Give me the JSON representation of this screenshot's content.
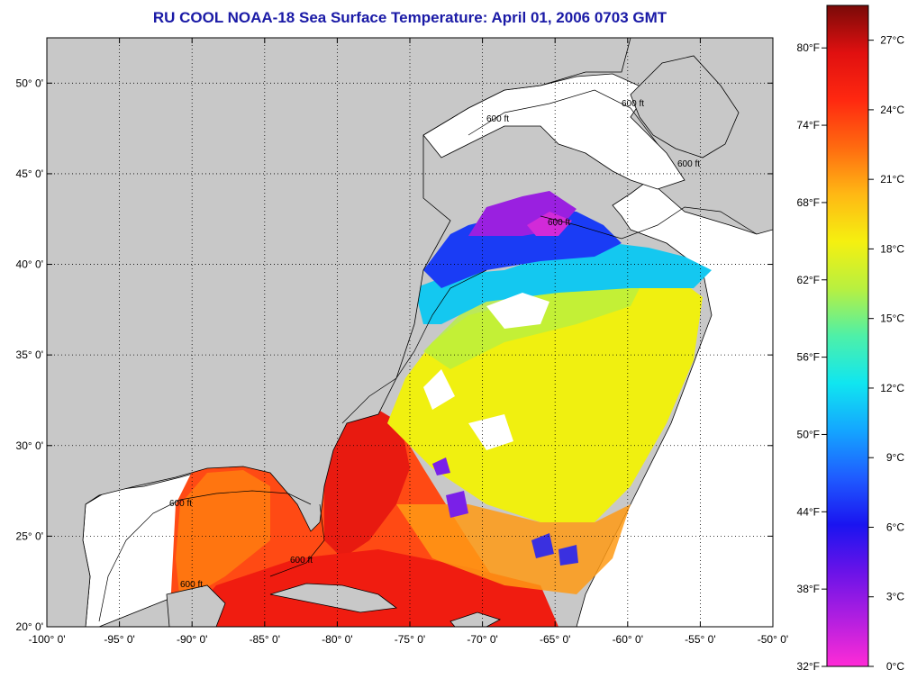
{
  "title": "RU COOL  NOAA-18  Sea Surface Temperature:  April 01, 2006 0703 GMT",
  "map": {
    "lon_range": [
      -100,
      -50
    ],
    "lat_range": [
      20,
      52.5
    ],
    "lon_ticks": [
      "-100° 0'",
      "-95° 0'",
      "-90° 0'",
      "-85° 0'",
      "-80° 0'",
      "-75° 0'",
      "-70° 0'",
      "-65° 0'",
      "-60° 0'",
      "-55° 0'",
      "-50° 0'"
    ],
    "lat_ticks": [
      "20° 0'",
      "25° 0'",
      "30° 0'",
      "35° 0'",
      "40° 0'",
      "45° 0'",
      "50° 0'"
    ],
    "grid": "dotted",
    "land_color": "#c8c8c8",
    "nodata_color": "#ffffff",
    "isobath_labels": [
      "600 ft",
      "600 ft",
      "600 ft",
      "600 ft",
      "600 ft",
      "600 ft",
      "600 ft"
    ]
  },
  "colorbar": {
    "fahrenheit_ticks": [
      "32°F",
      "38°F",
      "44°F",
      "50°F",
      "56°F",
      "62°F",
      "68°F",
      "74°F",
      "80°F"
    ],
    "celsius_ticks": [
      "0°C",
      "3°C",
      "6°C",
      "9°C",
      "12°C",
      "15°C",
      "18°C",
      "21°C",
      "24°C",
      "27°C"
    ],
    "range_c": [
      0,
      28.5
    ],
    "colors": [
      "#ff2bd6",
      "#b21fe0",
      "#6a13e8",
      "#1a14f0",
      "#1f5cff",
      "#14a6ff",
      "#10e6f0",
      "#4ef0a8",
      "#b8f040",
      "#f5f010",
      "#ffb814",
      "#ff6a10",
      "#ff2810",
      "#e01010",
      "#7a0a08"
    ]
  }
}
